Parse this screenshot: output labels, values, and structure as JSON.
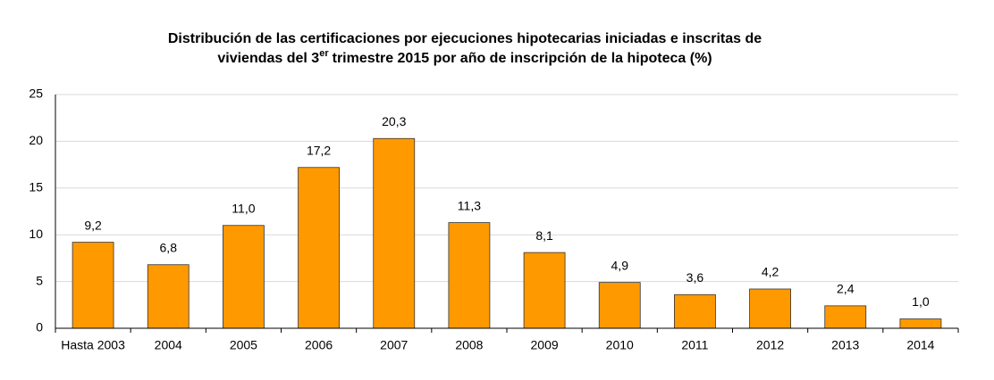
{
  "chart_data": {
    "type": "bar",
    "title": [
      "Distribución de las certificaciones por ejecuciones hipotecarias iniciadas e inscritas de",
      "viviendas del 3",
      "er",
      "trimestre 2015 por año de inscripción de la hipoteca (%)"
    ],
    "categories": [
      "Hasta 2003",
      "2004",
      "2005",
      "2006",
      "2007",
      "2008",
      "2009",
      "2010",
      "2011",
      "2012",
      "2013",
      "2014"
    ],
    "values": [
      9.2,
      6.8,
      11.0,
      17.2,
      20.3,
      11.3,
      8.1,
      4.9,
      3.6,
      4.2,
      2.4,
      1.0
    ],
    "value_labels": [
      "9,2",
      "6,8",
      "11,0",
      "17,2",
      "20,3",
      "11,3",
      "8,1",
      "4,9",
      "3,6",
      "4,2",
      "2,4",
      "1,0"
    ],
    "color": "#ff9900",
    "ylim": [
      0,
      25
    ],
    "yticks": [
      0,
      5,
      10,
      15,
      20,
      25
    ],
    "grid": true
  }
}
